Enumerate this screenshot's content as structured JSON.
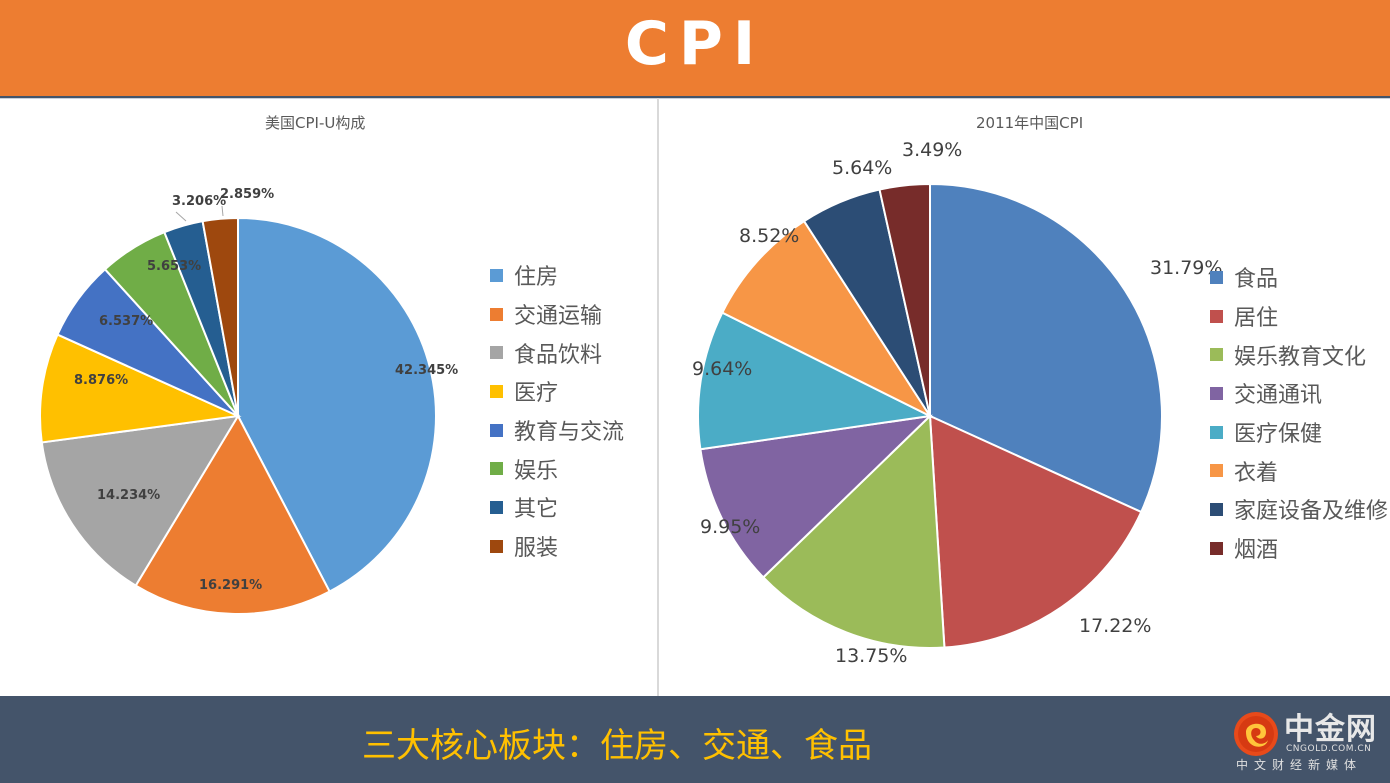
{
  "header": {
    "title": "CPI"
  },
  "footer": {
    "text": "三大核心板块：住房、交通、食品",
    "logo": {
      "name": "中金网",
      "domain": "CNGOLD.COM.CN",
      "tagline": "中文财经新媒体"
    }
  },
  "colors": {
    "header_bg": "#ED7D31",
    "footer_bg": "#44546A",
    "footer_text": "#FFC000"
  },
  "chart_data": [
    {
      "type": "pie",
      "title": "美国CPI-U构成",
      "categories": [
        "住房",
        "交通运输",
        "食品饮料",
        "医疗",
        "教育与交流",
        "娱乐",
        "其它",
        "服装"
      ],
      "values": [
        42.345,
        16.291,
        14.234,
        8.876,
        6.537,
        5.653,
        3.206,
        2.859
      ],
      "labels": [
        "42.345%",
        "16.291%",
        "14.234%",
        "8.876%",
        "6.537%",
        "5.653%",
        "3.206%",
        "2.859%"
      ],
      "colors": [
        "#5B9BD5",
        "#ED7D31",
        "#A5A5A5",
        "#FFC000",
        "#4472C4",
        "#70AD47",
        "#255E91",
        "#9E480E"
      ],
      "legend_position": "right",
      "start_angle_deg": 0,
      "direction": "clockwise"
    },
    {
      "type": "pie",
      "title": "2011年中国CPI",
      "categories": [
        "食品",
        "居住",
        "娱乐教育文化",
        "交通通讯",
        "医疗保健",
        "衣着",
        "家庭设备及维修",
        "烟酒"
      ],
      "values": [
        31.79,
        17.22,
        13.75,
        9.95,
        9.64,
        8.52,
        5.64,
        3.49
      ],
      "labels": [
        "31.79%",
        "17.22%",
        "13.75%",
        "9.95%",
        "9.64%",
        "8.52%",
        "5.64%",
        "3.49%"
      ],
      "colors": [
        "#4F81BD",
        "#C0504D",
        "#9BBB59",
        "#8064A2",
        "#4BACC6",
        "#F79646",
        "#2C4D75",
        "#772C2A"
      ],
      "legend_position": "right",
      "start_angle_deg": 0,
      "direction": "clockwise"
    }
  ]
}
